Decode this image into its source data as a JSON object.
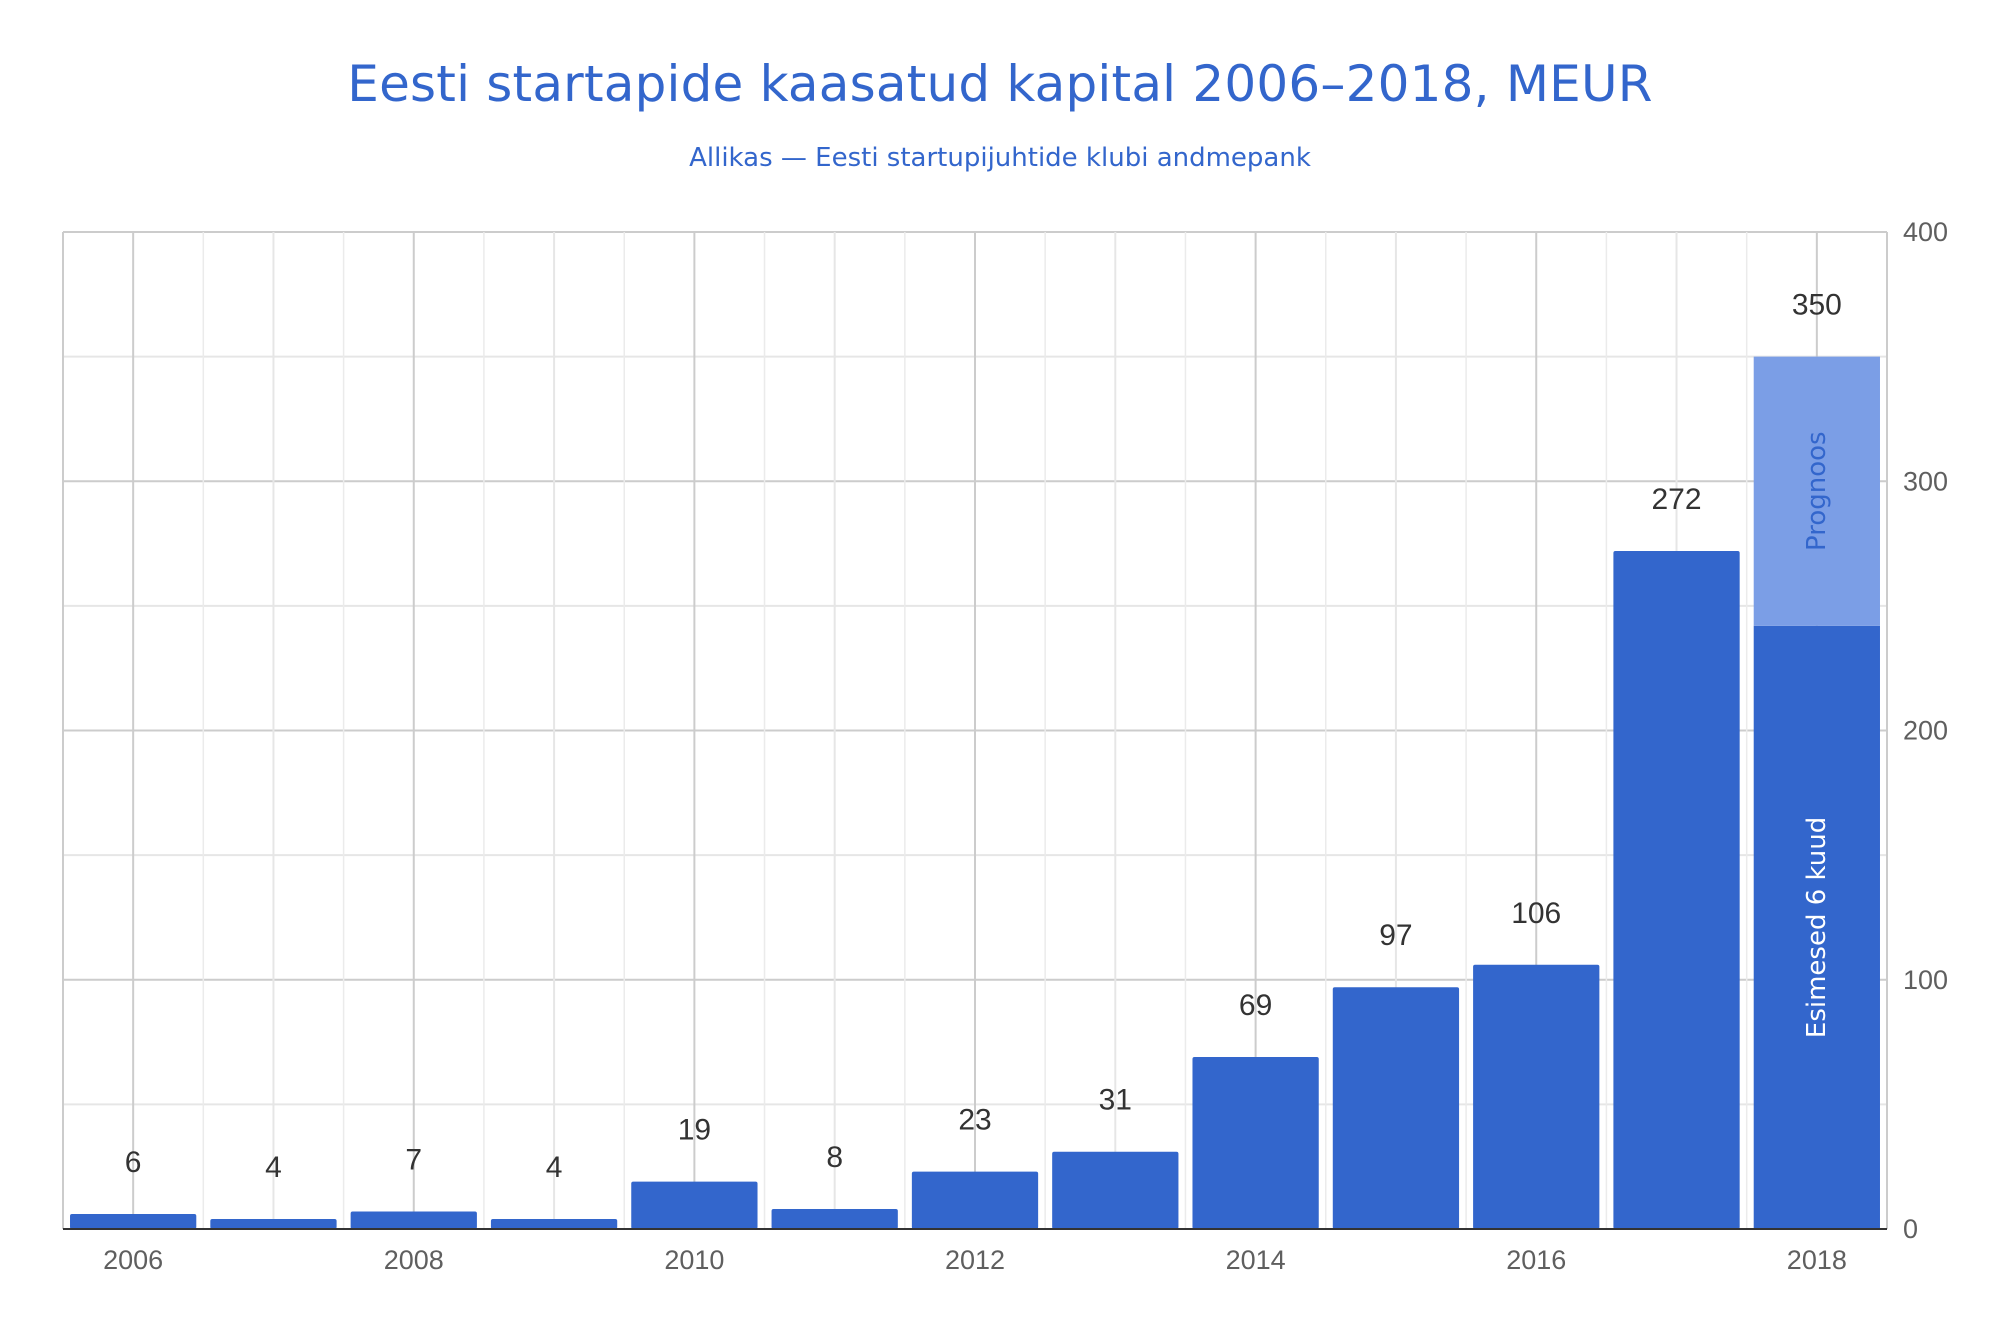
{
  "chart_data": {
    "type": "bar",
    "title": "Eesti startapide kaasatud kapital 2006–2018, MEUR",
    "subtitle": "Allikas — Eesti startupijuhtide klubi andmepank",
    "categories": [
      "2006",
      "2007",
      "2008",
      "2009",
      "2010",
      "2011",
      "2012",
      "2013",
      "2014",
      "2015",
      "2016",
      "2017",
      "2018"
    ],
    "x_tick_labels": [
      "2006",
      "2008",
      "2010",
      "2012",
      "2014",
      "2016",
      "2018"
    ],
    "values": [
      6,
      4,
      7,
      4,
      19,
      8,
      23,
      31,
      69,
      97,
      106,
      272,
      350
    ],
    "data_labels": [
      "6",
      "4",
      "7",
      "4",
      "19",
      "8",
      "23",
      "31",
      "69",
      "97",
      "106",
      "272",
      "350"
    ],
    "stacked_last_bar": {
      "category": "2018",
      "segments": [
        {
          "name": "Esimesed 6 kuud",
          "value": 242,
          "color": "#3366cc",
          "label_color": "#ffffff"
        },
        {
          "name": "Prognoos",
          "value": 108,
          "color": "#7b9ee6",
          "label_color": "#3366cc"
        }
      ]
    },
    "y_axis": {
      "position": "right",
      "ylim": [
        0,
        400
      ],
      "ticks": [
        "0",
        "100",
        "200",
        "300",
        "400"
      ]
    },
    "grid": true,
    "legend": "none",
    "bar_color": "#3366cc",
    "title_color": "#3366cc"
  }
}
